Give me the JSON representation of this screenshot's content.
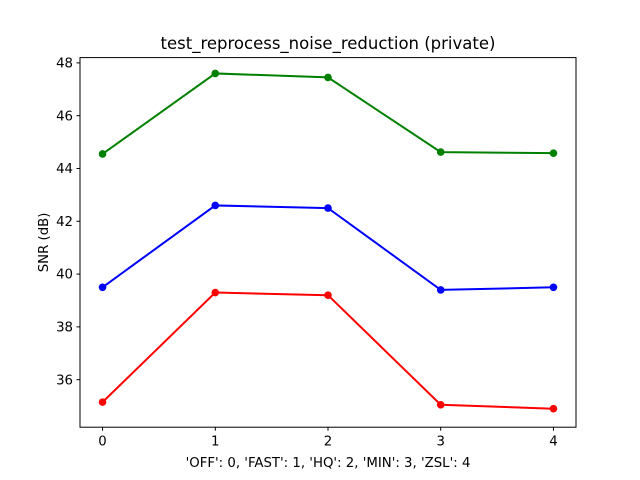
{
  "chart_data": {
    "type": "line",
    "title": "test_reprocess_noise_reduction (private)",
    "xlabel": "'OFF': 0, 'FAST': 1, 'HQ': 2, 'MIN': 3, 'ZSL': 4",
    "ylabel": "SNR (dB)",
    "x": [
      0,
      1,
      2,
      3,
      4
    ],
    "xtick_labels": [
      "0",
      "1",
      "2",
      "3",
      "4"
    ],
    "ytick_values": [
      36,
      38,
      40,
      42,
      44,
      46,
      48
    ],
    "xlim": [
      -0.2,
      4.2
    ],
    "ylim": [
      34.2,
      48.2
    ],
    "grid": false,
    "legend": "none",
    "background_color": "#ffffff",
    "axis_color": "#000000",
    "series": [
      {
        "name": "green-series",
        "color": "#008000",
        "marker": "circle",
        "values": [
          44.55,
          47.6,
          47.45,
          44.62,
          44.58
        ]
      },
      {
        "name": "blue-series",
        "color": "#0000ff",
        "marker": "circle",
        "values": [
          39.5,
          42.6,
          42.5,
          39.4,
          39.5
        ]
      },
      {
        "name": "red-series",
        "color": "#ff0000",
        "marker": "circle",
        "values": [
          35.15,
          39.3,
          39.2,
          35.05,
          34.9
        ]
      }
    ]
  }
}
